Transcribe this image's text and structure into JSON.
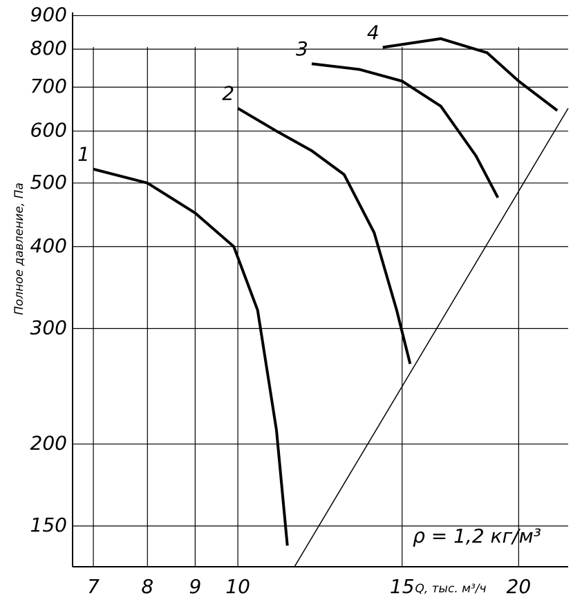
{
  "chart_data": {
    "type": "line",
    "y_label": "Полное давление, Па",
    "x_label": "Q, тыс. м³/ч",
    "annotation": "ρ = 1,2 кг/м³",
    "xscale": "log",
    "yscale": "log",
    "xlim": [
      6.65,
      22.6
    ],
    "ylim": [
      130,
      910
    ],
    "xticks": [
      7,
      8,
      9,
      10,
      15,
      20
    ],
    "yticks": [
      150,
      200,
      300,
      400,
      500,
      600,
      700,
      800,
      900
    ],
    "grid": true,
    "series": [
      {
        "name": "1",
        "color": "#000000",
        "x": [
          7,
          8,
          9,
          9.9,
          10.5,
          11,
          11.3
        ],
        "values": [
          525,
          500,
          450,
          400,
          320,
          210,
          140
        ]
      },
      {
        "name": "2",
        "color": "#000000",
        "x": [
          10,
          11,
          12,
          13,
          14,
          14.8,
          15.3
        ],
        "values": [
          650,
          600,
          560,
          515,
          420,
          320,
          265
        ]
      },
      {
        "name": "3",
        "color": "#000000",
        "x": [
          12,
          13.5,
          15,
          16.5,
          18,
          19
        ],
        "values": [
          760,
          745,
          715,
          655,
          550,
          475
        ]
      },
      {
        "name": "4",
        "color": "#000000",
        "x": [
          14.3,
          16.5,
          18.5,
          20,
          22
        ],
        "values": [
          805,
          830,
          790,
          715,
          645
        ]
      }
    ],
    "limit_line": {
      "color": "#000000",
      "x": [
        11.5,
        22.6
      ],
      "values": [
        130,
        650
      ]
    }
  }
}
